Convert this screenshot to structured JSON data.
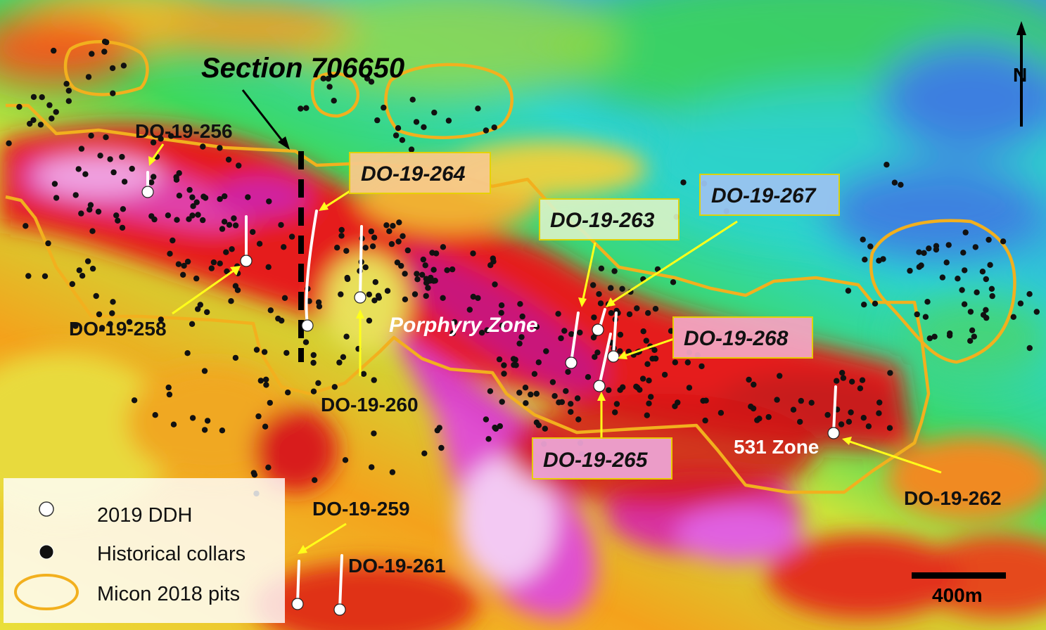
{
  "section_label": "Section 706650",
  "north_label": "N",
  "scale_label": "400m",
  "zones": [
    {
      "id": "porphyry",
      "label": "Porphyry Zone"
    },
    {
      "id": "z531",
      "label": "531 Zone"
    }
  ],
  "drillholes": [
    {
      "id": "DO-19-256",
      "label": "DO-19-256",
      "boxed": false
    },
    {
      "id": "DO-19-258",
      "label": "DO-19-258",
      "boxed": false
    },
    {
      "id": "DO-19-260",
      "label": "DO-19-260",
      "boxed": false
    },
    {
      "id": "DO-19-264",
      "label": "DO-19-264",
      "boxed": true
    },
    {
      "id": "DO-19-263",
      "label": "DO-19-263",
      "boxed": true
    },
    {
      "id": "DO-19-267",
      "label": "DO-19-267",
      "boxed": true
    },
    {
      "id": "DO-19-268",
      "label": "DO-19-268",
      "boxed": true
    },
    {
      "id": "DO-19-265",
      "label": "DO-19-265",
      "boxed": true
    },
    {
      "id": "DO-19-262",
      "label": "DO-19-262",
      "boxed": false
    },
    {
      "id": "DO-19-259",
      "label": "DO-19-259",
      "boxed": false
    },
    {
      "id": "DO-19-261",
      "label": "DO-19-261",
      "boxed": false
    }
  ],
  "legend": [
    {
      "symbol": "white-dot",
      "label": "2019 DDH"
    },
    {
      "symbol": "black-dot",
      "label": "Historical collars"
    },
    {
      "symbol": "orange-ellipse",
      "label": "Micon 2018 pits"
    }
  ],
  "colors": {
    "pit_outline": "#f2b01e",
    "arrow": "#ffff1a",
    "label_box_fill": "#ffff99",
    "label_box_border": "#e8d200"
  }
}
